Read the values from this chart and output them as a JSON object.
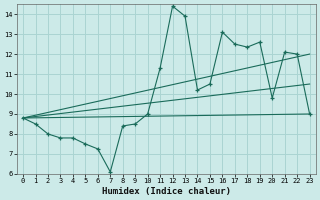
{
  "title": "",
  "xlabel": "Humidex (Indice chaleur)",
  "background_color": "#cceae8",
  "grid_color": "#aad4d2",
  "line_color": "#1a6b5a",
  "xlim": [
    -0.5,
    23.5
  ],
  "ylim": [
    6,
    14.5
  ],
  "yticks": [
    6,
    7,
    8,
    9,
    10,
    11,
    12,
    13,
    14
  ],
  "xticks": [
    0,
    1,
    2,
    3,
    4,
    5,
    6,
    7,
    8,
    9,
    10,
    11,
    12,
    13,
    14,
    15,
    16,
    17,
    18,
    19,
    20,
    21,
    22,
    23
  ],
  "lines": [
    {
      "x": [
        0,
        1,
        2,
        3,
        4,
        5,
        6,
        7,
        8,
        9,
        10,
        11,
        12,
        13,
        14,
        15,
        16,
        17,
        18,
        19,
        20,
        21,
        22,
        23
      ],
      "y": [
        8.8,
        8.5,
        8.0,
        7.8,
        7.8,
        7.5,
        7.25,
        6.1,
        8.4,
        8.5,
        9.0,
        11.3,
        14.4,
        13.9,
        10.2,
        10.5,
        13.1,
        12.5,
        12.35,
        12.6,
        9.8,
        12.1,
        12.0,
        9.0
      ],
      "has_markers": true
    },
    {
      "x": [
        0,
        23
      ],
      "y": [
        8.8,
        12.0
      ],
      "has_markers": false
    },
    {
      "x": [
        0,
        23
      ],
      "y": [
        8.8,
        9.0
      ],
      "has_markers": false
    },
    {
      "x": [
        0,
        23
      ],
      "y": [
        8.8,
        10.5
      ],
      "has_markers": false
    }
  ]
}
